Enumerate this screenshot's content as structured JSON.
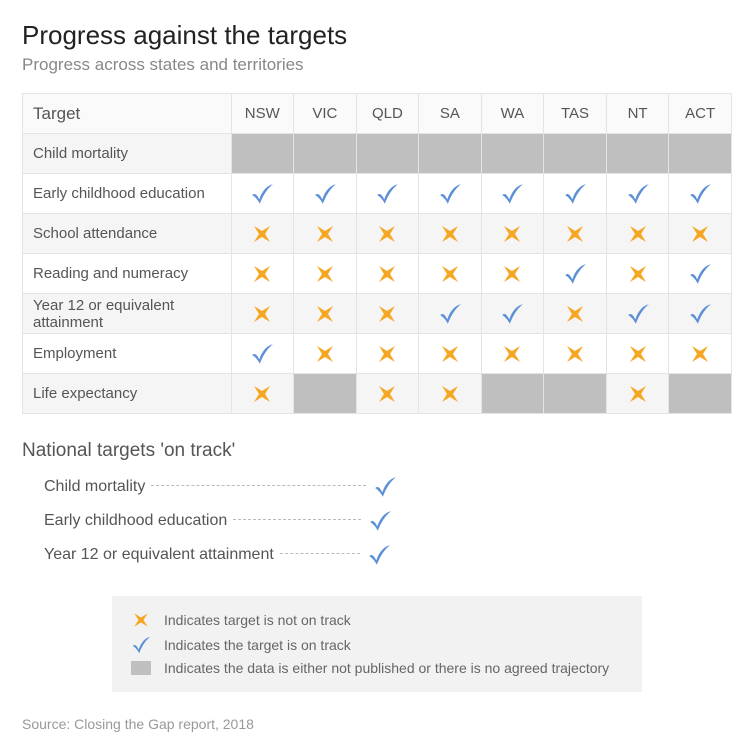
{
  "title": "Progress against the targets",
  "subtitle": "Progress across states and territories",
  "colors": {
    "check": "#5b8fd6",
    "cross": "#f5a623",
    "na": "#bfbfbf",
    "grid": "#e4e4e4",
    "row_odd": "#f5f5f5",
    "row_even": "#ffffff",
    "text": "#555555",
    "subtext": "#888888",
    "legend_bg": "#f2f2f2"
  },
  "table": {
    "header_first": "Target",
    "states": [
      "NSW",
      "VIC",
      "QLD",
      "SA",
      "WA",
      "TAS",
      "NT",
      "ACT"
    ],
    "rows": [
      {
        "label": "Child mortality",
        "cells": [
          "na",
          "na",
          "na",
          "na",
          "na",
          "na",
          "na",
          "na"
        ]
      },
      {
        "label": "Early childhood education",
        "cells": [
          "check",
          "check",
          "check",
          "check",
          "check",
          "check",
          "check",
          "check"
        ]
      },
      {
        "label": "School attendance",
        "cells": [
          "cross",
          "cross",
          "cross",
          "cross",
          "cross",
          "cross",
          "cross",
          "cross"
        ]
      },
      {
        "label": "Reading and numeracy",
        "cells": [
          "cross",
          "cross",
          "cross",
          "cross",
          "cross",
          "check",
          "cross",
          "check"
        ]
      },
      {
        "label": "Year 12 or equivalent attainment",
        "cells": [
          "cross",
          "cross",
          "cross",
          "check",
          "check",
          "cross",
          "check",
          "check"
        ]
      },
      {
        "label": "Employment",
        "cells": [
          "check",
          "cross",
          "cross",
          "cross",
          "cross",
          "cross",
          "cross",
          "cross"
        ]
      },
      {
        "label": "Life expectancy",
        "cells": [
          "cross",
          "na",
          "cross",
          "cross",
          "na",
          "na",
          "cross",
          "na"
        ]
      }
    ]
  },
  "national": {
    "title": "National targets 'on track'",
    "items": [
      {
        "label": "Child mortality",
        "dot_width": 215
      },
      {
        "label": "Early childhood education",
        "dot_width": 128
      },
      {
        "label": "Year 12 or equivalent attainment",
        "dot_width": 80
      }
    ]
  },
  "legend": {
    "cross": "Indicates target is not on track",
    "check": "Indicates the target is on track",
    "na": "Indicates the data is either not published or there is no agreed trajectory"
  },
  "source": "Source: Closing the Gap report, 2018"
}
